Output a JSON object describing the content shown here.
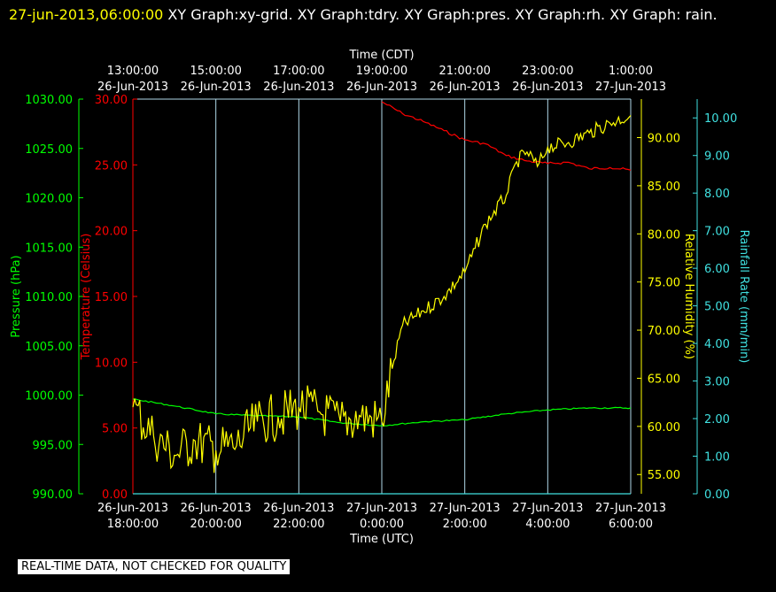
{
  "header": {
    "timestamp": "27-jun-2013,06:00:00",
    "graphs": "XY Graph:xy-grid.  XY Graph:tdry.  XY Graph:pres.  XY Graph:rh.  XY Graph: rain."
  },
  "notice": "REAL-TIME DATA, NOT CHECKED FOR QUALITY",
  "colors": {
    "grid": "#b0d8e8",
    "temperature": "#ff0000",
    "pressure": "#00ff00",
    "humidity": "#ffff00",
    "rain": "#40e0e0",
    "text": "#ffffff"
  },
  "chart_data": {
    "type": "line",
    "top_axis": {
      "label": "Time (CDT)",
      "ticks": [
        {
          "time": "13:00:00",
          "date": "26-Jun-2013"
        },
        {
          "time": "15:00:00",
          "date": "26-Jun-2013"
        },
        {
          "time": "17:00:00",
          "date": "26-Jun-2013"
        },
        {
          "time": "19:00:00",
          "date": "26-Jun-2013"
        },
        {
          "time": "21:00:00",
          "date": "26-Jun-2013"
        },
        {
          "time": "23:00:00",
          "date": "26-Jun-2013"
        },
        {
          "time": "1:00:00",
          "date": "27-Jun-2013"
        }
      ]
    },
    "bottom_axis": {
      "label": "Time (UTC)",
      "ticks": [
        {
          "date": "26-Jun-2013",
          "time": "18:00:00"
        },
        {
          "date": "26-Jun-2013",
          "time": "20:00:00"
        },
        {
          "date": "26-Jun-2013",
          "time": "22:00:00"
        },
        {
          "date": "27-Jun-2013",
          "time": "0:00:00"
        },
        {
          "date": "27-Jun-2013",
          "time": "2:00:00"
        },
        {
          "date": "27-Jun-2013",
          "time": "4:00:00"
        },
        {
          "date": "27-Jun-2013",
          "time": "6:00:00"
        }
      ],
      "xlim_hours_utc": [
        "2013-06-26 18:00",
        "2013-06-27 06:00"
      ]
    },
    "y_axes": {
      "pressure": {
        "label": "Pressure (hPa)",
        "ticks": [
          "1030.00",
          "1025.00",
          "1020.00",
          "1015.00",
          "1010.00",
          "1005.00",
          "1000.00",
          "995.00",
          "990.00"
        ],
        "ylim": [
          990,
          1030
        ]
      },
      "temperature": {
        "label": "Temperature (Celsius)",
        "ticks": [
          "30.00",
          "25.00",
          "20.00",
          "15.00",
          "10.00",
          "5.00",
          "0.00"
        ],
        "ylim": [
          0,
          30
        ]
      },
      "humidity": {
        "label": "Relative Humidity (%)",
        "ticks": [
          "90.00",
          "85.00",
          "80.00",
          "75.00",
          "70.00",
          "65.00",
          "60.00",
          "55.00"
        ],
        "ylim": [
          53,
          94
        ]
      },
      "rain": {
        "label": "Rainfall Rate (mm/min)",
        "ticks": [
          "10.00",
          "9.00",
          "8.00",
          "7.00",
          "6.00",
          "5.00",
          "4.00",
          "3.00",
          "2.00",
          "1.00",
          "0.00"
        ],
        "ylim": [
          0,
          10.5
        ]
      }
    },
    "series": [
      {
        "key": "temperature",
        "axis": "temperature",
        "x": [
          "2013-06-27 00:00",
          "2013-06-27 00:30",
          "2013-06-27 01:00",
          "2013-06-27 01:30",
          "2013-06-27 02:00",
          "2013-06-27 02:30",
          "2013-06-27 03:00",
          "2013-06-27 03:30",
          "2013-06-27 04:00",
          "2013-06-27 04:30",
          "2013-06-27 05:00",
          "2013-06-27 05:30",
          "2013-06-27 06:00"
        ],
        "y": [
          29.8,
          28.9,
          28.3,
          27.6,
          26.9,
          26.6,
          25.7,
          25.3,
          25.1,
          25.2,
          24.7,
          24.8,
          24.6
        ]
      },
      {
        "key": "pressure",
        "axis": "pressure",
        "x": [
          "2013-06-26 18:00",
          "2013-06-26 19:00",
          "2013-06-26 20:00",
          "2013-06-26 21:00",
          "2013-06-26 22:00",
          "2013-06-26 23:00",
          "2013-06-27 00:00",
          "2013-06-27 01:00",
          "2013-06-27 02:00",
          "2013-06-27 03:00",
          "2013-06-27 04:00",
          "2013-06-27 05:00",
          "2013-06-27 06:00"
        ],
        "y": [
          999.6,
          998.9,
          998.1,
          997.9,
          997.8,
          997.2,
          996.9,
          997.3,
          997.5,
          998.1,
          998.5,
          998.7,
          998.7
        ]
      },
      {
        "key": "humidity",
        "axis": "humidity",
        "x": [
          "2013-06-26 18:00",
          "2013-06-26 18:30",
          "2013-06-26 19:00",
          "2013-06-26 19:30",
          "2013-06-26 20:00",
          "2013-06-26 20:30",
          "2013-06-26 21:00",
          "2013-06-26 21:30",
          "2013-06-26 22:00",
          "2013-06-26 22:30",
          "2013-06-26 23:00",
          "2013-06-26 23:30",
          "2013-06-27 00:00",
          "2013-06-27 00:15",
          "2013-06-27 00:30",
          "2013-06-27 01:00",
          "2013-06-27 01:30",
          "2013-06-27 02:00",
          "2013-06-27 02:15",
          "2013-06-27 02:30",
          "2013-06-27 03:00",
          "2013-06-27 03:15",
          "2013-06-27 03:30",
          "2013-06-27 03:45",
          "2013-06-27 04:00",
          "2013-06-27 04:30",
          "2013-06-27 05:00",
          "2013-06-27 05:30",
          "2013-06-27 06:00"
        ],
        "y": [
          62.0,
          59.0,
          57.0,
          58.5,
          57.5,
          58.0,
          60.5,
          61.0,
          62.0,
          61.5,
          60.5,
          61.0,
          60.5,
          66.0,
          70.5,
          72.0,
          73.5,
          76.0,
          78.5,
          81.0,
          84.0,
          87.5,
          88.5,
          87.0,
          89.0,
          89.5,
          90.5,
          91.5,
          92.3
        ]
      },
      {
        "key": "rain",
        "axis": "rain",
        "x": [
          "2013-06-26 18:00",
          "2013-06-27 06:00"
        ],
        "y": [
          0.0,
          0.0
        ]
      }
    ]
  }
}
